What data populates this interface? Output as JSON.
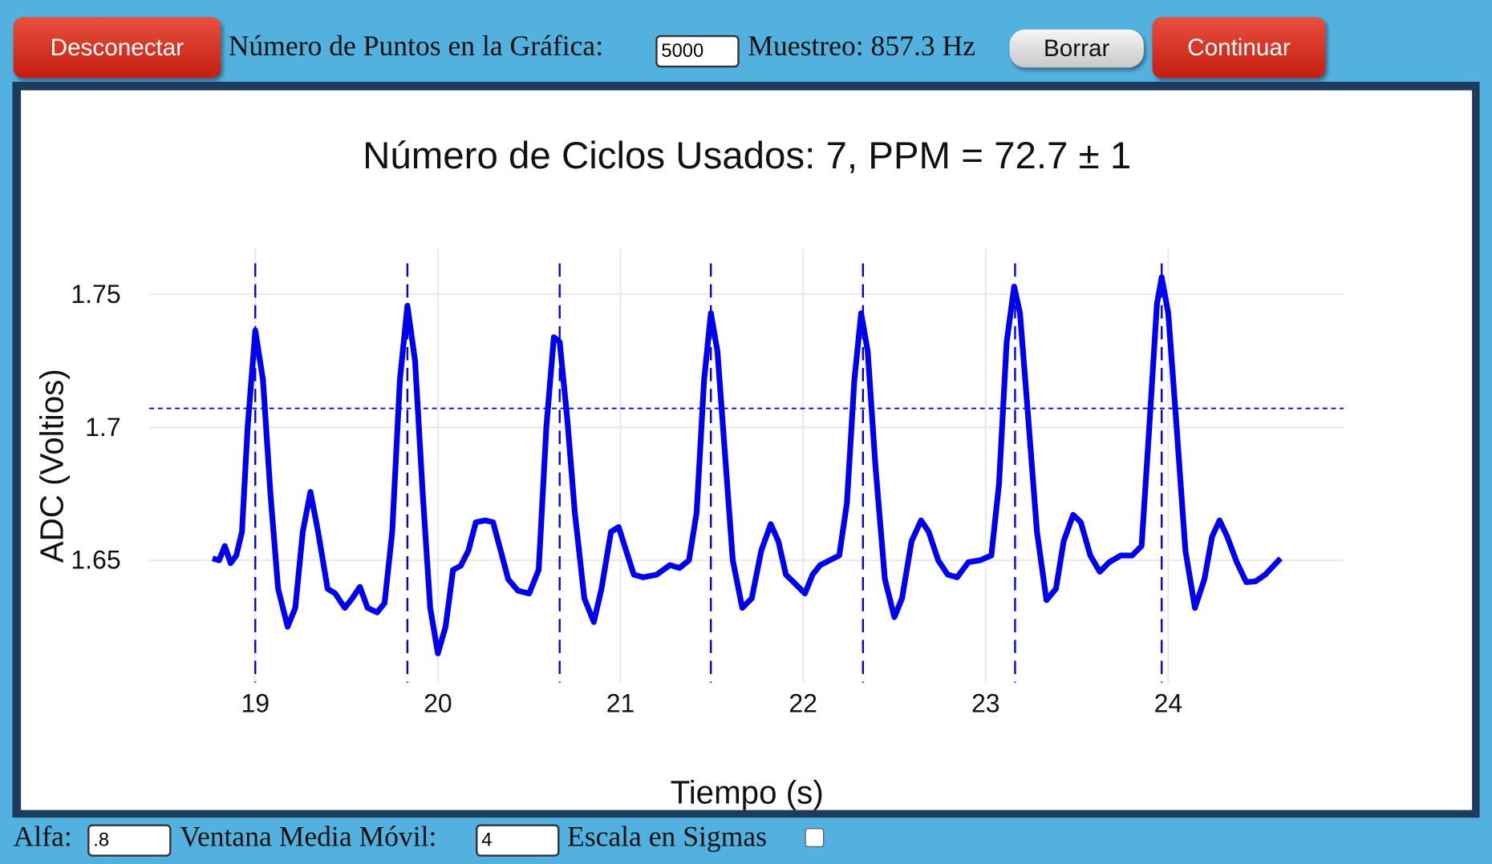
{
  "toolbar": {
    "disconnect": "Desconectar",
    "points_label": "Número de Puntos en la Gráfica:",
    "points_value": "5000",
    "sampling": "Muestreo: 857.3 Hz",
    "clear": "Borrar",
    "continue": "Continuar"
  },
  "chart_data": {
    "type": "line",
    "title": "Número de Ciclos Usados: 7, PPM = 72.7 ± 1",
    "x_label": "Tiempo (s)",
    "y_label": "ADC (Voltios)",
    "color": "#0000ee",
    "grid": true,
    "xlim": [
      18.42,
      24.96
    ],
    "ylim": [
      1.604,
      1.767
    ],
    "xticks": [
      19,
      20,
      21,
      22,
      23,
      24
    ],
    "yticks": [
      1.65,
      {
        "value": 1.7,
        "label": "1.7"
      },
      1.75
    ],
    "peak_lines": [
      19.0,
      19.833,
      20.667,
      21.495,
      22.328,
      23.161,
      23.964
    ],
    "threshold": 1.7071,
    "x": [
      18.766,
      18.802,
      18.833,
      18.865,
      18.896,
      18.927,
      18.958,
      19.0,
      19.042,
      19.083,
      19.125,
      19.177,
      19.219,
      19.26,
      19.302,
      19.344,
      19.396,
      19.438,
      19.49,
      19.531,
      19.573,
      19.615,
      19.667,
      19.708,
      19.75,
      19.792,
      19.833,
      19.875,
      19.917,
      19.958,
      20.0,
      20.042,
      20.083,
      20.125,
      20.167,
      20.208,
      20.26,
      20.302,
      20.344,
      20.385,
      20.438,
      20.5,
      20.552,
      20.594,
      20.635,
      20.667,
      20.708,
      20.75,
      20.802,
      20.854,
      20.896,
      20.948,
      20.99,
      21.031,
      21.073,
      21.125,
      21.198,
      21.271,
      21.323,
      21.375,
      21.417,
      21.458,
      21.495,
      21.531,
      21.573,
      21.615,
      21.667,
      21.719,
      21.771,
      21.823,
      21.865,
      21.906,
      21.958,
      22.01,
      22.052,
      22.094,
      22.146,
      22.198,
      22.24,
      22.281,
      22.318,
      22.354,
      22.396,
      22.448,
      22.5,
      22.542,
      22.594,
      22.646,
      22.688,
      22.74,
      22.792,
      22.844,
      22.906,
      22.969,
      23.031,
      23.073,
      23.115,
      23.156,
      23.188,
      23.229,
      23.281,
      23.333,
      23.385,
      23.427,
      23.479,
      23.521,
      23.573,
      23.625,
      23.677,
      23.74,
      23.802,
      23.854,
      23.896,
      23.938,
      23.964,
      24.0,
      24.042,
      24.094,
      24.146,
      24.198,
      24.24,
      24.281,
      24.323,
      24.375,
      24.427,
      24.479,
      24.531,
      24.615
    ],
    "values": [
      1.6507,
      1.65,
      1.6554,
      1.6489,
      1.6518,
      1.6607,
      1.7,
      1.7364,
      1.7179,
      1.675,
      1.6393,
      1.625,
      1.6321,
      1.6607,
      1.6757,
      1.6607,
      1.6393,
      1.6375,
      1.6321,
      1.6357,
      1.64,
      1.6321,
      1.6304,
      1.6339,
      1.6607,
      1.7179,
      1.7457,
      1.725,
      1.675,
      1.6321,
      1.615,
      1.625,
      1.6464,
      1.6479,
      1.6536,
      1.6643,
      1.665,
      1.6643,
      1.6536,
      1.6429,
      1.6386,
      1.6375,
      1.6464,
      1.7,
      1.7339,
      1.7321,
      1.7036,
      1.6679,
      1.6357,
      1.6268,
      1.6393,
      1.6607,
      1.6625,
      1.6536,
      1.6446,
      1.6436,
      1.6446,
      1.6482,
      1.6471,
      1.65,
      1.6679,
      1.7179,
      1.7429,
      1.7286,
      1.6893,
      1.65,
      1.6321,
      1.6357,
      1.6536,
      1.6636,
      1.6571,
      1.6446,
      1.6411,
      1.6375,
      1.6446,
      1.6482,
      1.65,
      1.6518,
      1.6714,
      1.7179,
      1.7429,
      1.7286,
      1.6857,
      1.6429,
      1.6286,
      1.6357,
      1.6571,
      1.665,
      1.6607,
      1.65,
      1.6446,
      1.6436,
      1.6493,
      1.65,
      1.6518,
      1.6786,
      1.7321,
      1.7529,
      1.7429,
      1.7071,
      1.6607,
      1.635,
      1.6393,
      1.6571,
      1.6671,
      1.6643,
      1.6518,
      1.6457,
      1.6493,
      1.6518,
      1.6518,
      1.6554,
      1.7,
      1.7464,
      1.7564,
      1.7429,
      1.7036,
      1.6536,
      1.6321,
      1.6429,
      1.6589,
      1.665,
      1.6589,
      1.6493,
      1.6418,
      1.6421,
      1.6446,
      1.6507
    ]
  },
  "footer": {
    "alpha_label": "Alfa:",
    "alpha_value": ".8",
    "window_label": "Ventana Media Móvil:",
    "window_value": "4",
    "sigma_label": "Escala en Sigmas"
  }
}
